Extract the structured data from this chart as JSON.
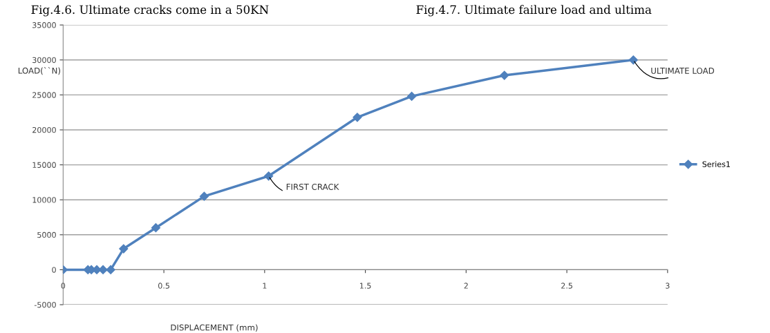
{
  "chart_data": {
    "type": "line",
    "xlabel": "DISPLACEMENT (mm)",
    "ylabel": "LOAD(``N)",
    "x": [
      0,
      0.123,
      0.14,
      0.167,
      0.198,
      0.236,
      0.3,
      0.46,
      0.7,
      1.02,
      1.46,
      1.73,
      2.19,
      2.83
    ],
    "series": [
      {
        "name": "Series1",
        "color": "#4f81bd",
        "values": [
          0,
          0,
          0,
          0,
          0,
          0,
          3000,
          6000,
          10500,
          13400,
          21800,
          24800,
          27800,
          30000
        ]
      }
    ],
    "xlim": [
      0,
      3
    ],
    "xticks": [
      0,
      0.5,
      1,
      1.5,
      2,
      2.5,
      3
    ],
    "ylim": [
      -5000,
      35000
    ],
    "yticks": [
      -5000,
      0,
      5000,
      10000,
      15000,
      20000,
      25000,
      30000,
      35000
    ],
    "grid": "y",
    "legend": "right",
    "marker": "diamond",
    "line_style": "solid",
    "annotations": [
      {
        "text": "FIRST CRACK",
        "x": 1.02,
        "y": 13400
      },
      {
        "text": "ULTIMATE LOAD",
        "x": 2.83,
        "y": 30000
      },
      "Fig.4.6. Ultimate cracks come in a 50KN",
      "Fig.4.7. Ultimate failure load and ultima"
    ]
  }
}
